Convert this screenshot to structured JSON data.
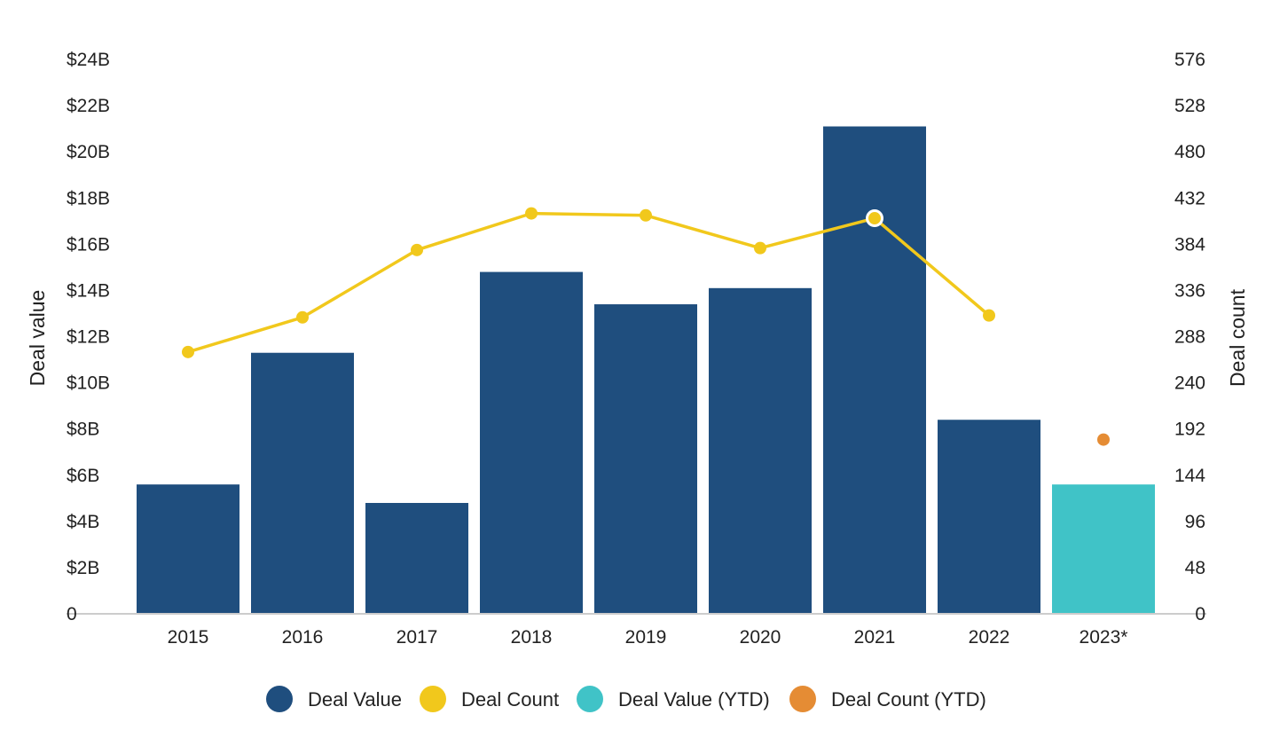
{
  "chart_data": {
    "type": "bar",
    "categories": [
      "2015",
      "2016",
      "2017",
      "2018",
      "2019",
      "2020",
      "2021",
      "2022",
      "2023*"
    ],
    "series": [
      {
        "name": "Deal Value",
        "kind": "bar",
        "axis": "left",
        "color": "#1f4e7e",
        "values": [
          5.6,
          11.3,
          4.8,
          14.8,
          13.4,
          14.1,
          21.1,
          8.4,
          null
        ]
      },
      {
        "name": "Deal Value (YTD)",
        "kind": "bar",
        "axis": "left",
        "color": "#40c3c7",
        "values": [
          null,
          null,
          null,
          null,
          null,
          null,
          null,
          null,
          5.6
        ]
      },
      {
        "name": "Deal Count",
        "kind": "line",
        "axis": "right",
        "color": "#f1c81c",
        "values": [
          272,
          308,
          378,
          416,
          414,
          380,
          411,
          310,
          null
        ]
      },
      {
        "name": "Deal Count (YTD)",
        "kind": "point",
        "axis": "right",
        "color": "#e58c34",
        "values": [
          null,
          null,
          null,
          null,
          null,
          null,
          null,
          null,
          181
        ]
      }
    ],
    "highlight": {
      "series": "Deal Count",
      "category": "2021"
    },
    "left_axis": {
      "label": "Deal value",
      "ylim": [
        0,
        24
      ],
      "ticks": [
        0,
        2,
        4,
        6,
        8,
        10,
        12,
        14,
        16,
        18,
        20,
        22,
        24
      ],
      "tick_labels": [
        "0",
        "$2B",
        "$4B",
        "$6B",
        "$8B",
        "$10B",
        "$12B",
        "$14B",
        "$16B",
        "$18B",
        "$20B",
        "$22B",
        "$24B"
      ]
    },
    "right_axis": {
      "label": "Deal count",
      "ylim": [
        0,
        576
      ],
      "ticks": [
        0,
        48,
        96,
        144,
        192,
        240,
        288,
        336,
        384,
        432,
        480,
        528,
        576
      ],
      "tick_labels": [
        "0",
        "48",
        "96",
        "144",
        "192",
        "240",
        "288",
        "336",
        "384",
        "432",
        "480",
        "528",
        "576"
      ]
    },
    "legend_position": "bottom",
    "grid": false
  }
}
